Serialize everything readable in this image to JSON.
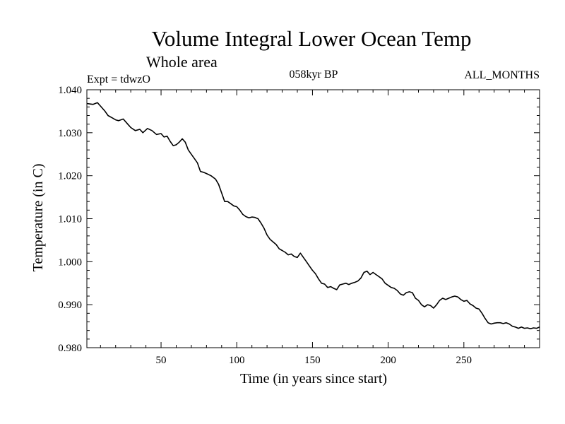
{
  "header": {
    "title": "Volume Integral Lower Ocean Temp",
    "subtitle": "Whole area",
    "expt": "Expt = tdwzO",
    "period": "058kyr BP",
    "months": "ALL_MONTHS"
  },
  "chart_data": {
    "type": "line",
    "xlabel": "Time (in years since start)",
    "ylabel": "Temperature (in C)",
    "xlim": [
      1,
      300
    ],
    "ylim": [
      0.98,
      1.04
    ],
    "xticks": [
      50,
      100,
      150,
      200,
      250
    ],
    "yticks": [
      "0.980",
      "0.990",
      "1.000",
      "1.010",
      "1.020",
      "1.030",
      "1.040"
    ],
    "grid": false,
    "series": [
      {
        "x": [
          1,
          5,
          8,
          10,
          13,
          15,
          18,
          20,
          22,
          25,
          28,
          30,
          33,
          36,
          38,
          41,
          44,
          47,
          50,
          52,
          54,
          56,
          58,
          60,
          62,
          64,
          66,
          68,
          70,
          72,
          74,
          76,
          78,
          80,
          83,
          86,
          88,
          90,
          92,
          94,
          96,
          98,
          100,
          102,
          104,
          106,
          108,
          110,
          112,
          114,
          116,
          118,
          120,
          122,
          124,
          126,
          128,
          130,
          132,
          134,
          136,
          138,
          140,
          142,
          144,
          146,
          148,
          150,
          152,
          154,
          156,
          158,
          160,
          162,
          164,
          166,
          168,
          170,
          172,
          174,
          176,
          178,
          180,
          182,
          184,
          186,
          188,
          190,
          192,
          194,
          196,
          198,
          200,
          202,
          204,
          206,
          208,
          210,
          212,
          214,
          216,
          218,
          220,
          222,
          224,
          226,
          228,
          230,
          232,
          234,
          236,
          238,
          240,
          242,
          244,
          246,
          248,
          250,
          252,
          254,
          256,
          258,
          260,
          262,
          264,
          266,
          268,
          270,
          272,
          274,
          276,
          278,
          280,
          282,
          284,
          286,
          288,
          290,
          292,
          294,
          296,
          298,
          300
        ],
        "y": [
          1.0368,
          1.0366,
          1.037,
          1.0362,
          1.035,
          1.034,
          1.0334,
          1.033,
          1.0328,
          1.0332,
          1.032,
          1.0312,
          1.0305,
          1.0308,
          1.03,
          1.031,
          1.0305,
          1.0296,
          1.0298,
          1.029,
          1.0292,
          1.028,
          1.027,
          1.0272,
          1.0278,
          1.0286,
          1.0278,
          1.026,
          1.025,
          1.024,
          1.023,
          1.021,
          1.0208,
          1.0205,
          1.02,
          1.0192,
          1.018,
          1.016,
          1.014,
          1.014,
          1.0135,
          1.013,
          1.0128,
          1.012,
          1.011,
          1.0105,
          1.0102,
          1.0104,
          1.0103,
          1.01,
          1.009,
          1.0078,
          1.0062,
          1.0052,
          1.0046,
          1.004,
          1.003,
          1.0026,
          1.0022,
          1.0016,
          1.0018,
          1.0012,
          1.001,
          1.002,
          1.001,
          1.0,
          0.999,
          0.998,
          0.9972,
          0.996,
          0.995,
          0.9948,
          0.994,
          0.9942,
          0.9938,
          0.9935,
          0.9946,
          0.9948,
          0.995,
          0.9947,
          0.995,
          0.9952,
          0.9955,
          0.9962,
          0.9975,
          0.9978,
          0.997,
          0.9975,
          0.997,
          0.9965,
          0.996,
          0.995,
          0.9945,
          0.994,
          0.9938,
          0.9933,
          0.9925,
          0.9922,
          0.9928,
          0.993,
          0.9928,
          0.9915,
          0.991,
          0.99,
          0.9895,
          0.99,
          0.9898,
          0.9892,
          0.99,
          0.991,
          0.9915,
          0.9912,
          0.9915,
          0.9918,
          0.992,
          0.9918,
          0.9912,
          0.9908,
          0.991,
          0.9902,
          0.9898,
          0.9892,
          0.989,
          0.988,
          0.9868,
          0.9858,
          0.9855,
          0.9857,
          0.9858,
          0.9858,
          0.9856,
          0.9858,
          0.9855,
          0.985,
          0.9848,
          0.9845,
          0.9848,
          0.9845,
          0.9846,
          0.9844,
          0.9846,
          0.9845,
          0.9848
        ]
      }
    ]
  }
}
